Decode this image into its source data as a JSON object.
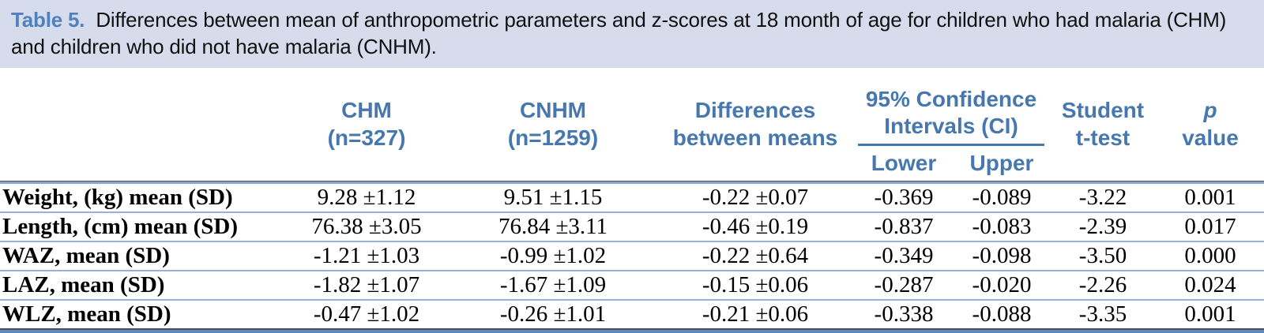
{
  "caption": {
    "label": "Table 5.",
    "text": "Differences between mean of anthropometric parameters and z-scores at 18 month of age for children who had malaria (CHM) and children who did not have malaria (CNHM)."
  },
  "table": {
    "columns": {
      "row_header": "",
      "chm": {
        "line1": "CHM",
        "line2": "(n=327)"
      },
      "cnhm": {
        "line1": "CNHM",
        "line2": "(n=1259)"
      },
      "diff": {
        "line1": "Differences",
        "line2": "between means"
      },
      "ci_group": {
        "line1": "95% Confidence",
        "line2": "Intervals (CI)"
      },
      "ci_lower": "Lower",
      "ci_upper": "Upper",
      "ttest": {
        "line1": "Student",
        "line2": "t-test"
      },
      "p": {
        "line1": "p",
        "line2": "value"
      }
    },
    "rows": [
      {
        "label": "Weight, (kg) mean (SD)",
        "chm": "9.28 ±1.12",
        "cnhm": "9.51 ±1.15",
        "diff": "-0.22 ±0.07",
        "lower": "-0.369",
        "upper": "-0.089",
        "t": "-3.22",
        "p": "0.001"
      },
      {
        "label": "Length, (cm) mean (SD)",
        "chm": "76.38 ±3.05",
        "cnhm": "76.84 ±3.11",
        "diff": "-0.46 ±0.19",
        "lower": "-0.837",
        "upper": "-0.083",
        "t": "-2.39",
        "p": "0.017"
      },
      {
        "label": "WAZ, mean (SD)",
        "chm": "-1.21 ±1.03",
        "cnhm": "-0.99 ±1.02",
        "diff": "-0.22 ±0.64",
        "lower": "-0.349",
        "upper": "-0.098",
        "t": "-3.50",
        "p": "0.000"
      },
      {
        "label": "LAZ, mean (SD)",
        "chm": "-1.82 ±1.07",
        "cnhm": "-1.67 ±1.09",
        "diff": "-0.15 ±0.06",
        "lower": "-0.287",
        "upper": "-0.020",
        "t": "-2.26",
        "p": "0.024"
      },
      {
        "label": "WLZ, mean (SD)",
        "chm": "-0.47 ±1.02",
        "cnhm": "-0.26 ±1.01",
        "diff": "-0.21 ±0.06",
        "lower": "-0.338",
        "upper": "-0.088",
        "t": "-3.35",
        "p": "0.001"
      }
    ]
  },
  "colors": {
    "caption_bg": "#d6dcec",
    "caption_label_blue": "#4f81bd",
    "header_text_blue": "#4677ae",
    "row_separator_blue": "#95b3d7",
    "bottom_border_blue": "#5d89bc",
    "dark_line": "#4a4f5c"
  }
}
